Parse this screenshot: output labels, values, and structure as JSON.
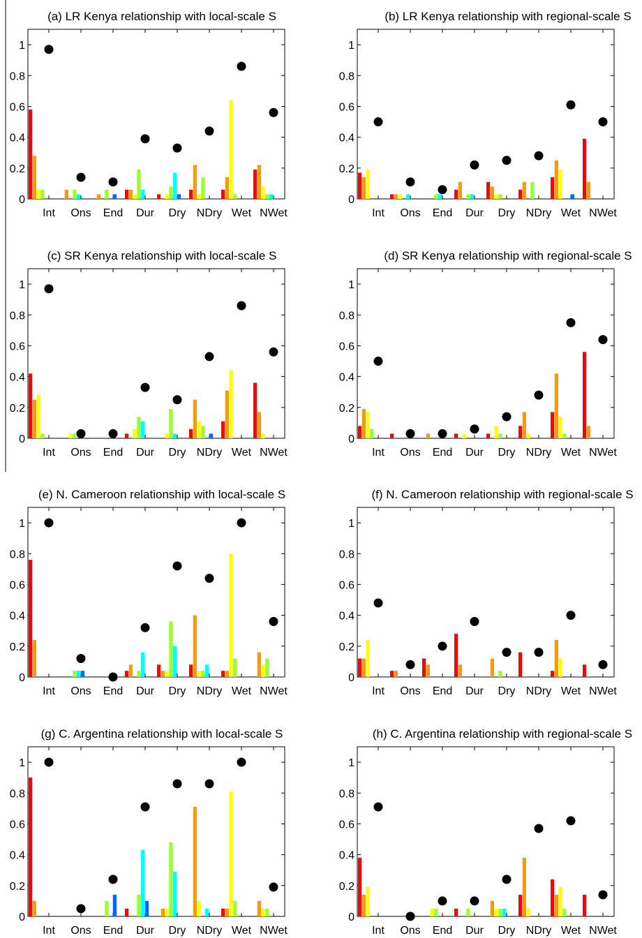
{
  "colors": {
    "series": [
      "#ff0000",
      "#ff9900",
      "#ffff00",
      "#99ff33",
      "#00ffff",
      "#0066ff"
    ],
    "marker": "#000000"
  },
  "chart_data": [
    {
      "type": "bar",
      "title": "(a) LR Kenya relationship with local-scale S",
      "categories": [
        "Int",
        "Ons",
        "End",
        "Dur",
        "Dry",
        "NDry",
        "Wet",
        "NWet"
      ],
      "ylim": [
        0,
        1.1
      ],
      "yticks": [
        "0",
        "0.2",
        "0.4",
        "0.6",
        "0.8",
        "1"
      ],
      "series_values": [
        [
          0.58,
          0,
          0,
          0.06,
          0.03,
          0.06,
          0.06,
          0.19
        ],
        [
          0.28,
          0.06,
          0.03,
          0.06,
          0,
          0.22,
          0.14,
          0.22
        ],
        [
          0.06,
          0,
          0,
          0.03,
          0.03,
          0.03,
          0.64,
          0.08
        ],
        [
          0.06,
          0.06,
          0.06,
          0.19,
          0.08,
          0.14,
          0.03,
          0.03
        ],
        [
          0,
          0.03,
          0,
          0.06,
          0.17,
          0,
          0,
          0.03
        ],
        [
          0,
          0,
          0.03,
          0,
          0.03,
          0,
          0,
          0
        ]
      ],
      "markers": [
        0.97,
        0.14,
        0.11,
        0.39,
        0.33,
        0.44,
        0.86,
        0.56
      ]
    },
    {
      "type": "bar",
      "title": "(b) LR Kenya relationship with regional-scale S",
      "categories": [
        "Int",
        "Ons",
        "End",
        "Dur",
        "Dry",
        "NDry",
        "Wet",
        "NWet"
      ],
      "ylim": [
        0,
        1.1
      ],
      "yticks": [
        "0",
        "0.2",
        "0.4",
        "0.6",
        "0.8",
        "1"
      ],
      "series_values": [
        [
          0.17,
          0.03,
          0,
          0.06,
          0.11,
          0.06,
          0.14,
          0.39
        ],
        [
          0.14,
          0.03,
          0,
          0.11,
          0.08,
          0.11,
          0.25,
          0.11
        ],
        [
          0.19,
          0.03,
          0,
          0,
          0.03,
          0,
          0.19,
          0
        ],
        [
          0,
          0,
          0.03,
          0.03,
          0.03,
          0.11,
          0,
          0
        ],
        [
          0,
          0.03,
          0.03,
          0.03,
          0,
          0,
          0,
          0
        ],
        [
          0,
          0,
          0,
          0,
          0,
          0,
          0.03,
          0
        ]
      ],
      "markers": [
        0.5,
        0.11,
        0.06,
        0.22,
        0.25,
        0.28,
        0.61,
        0.5
      ]
    },
    {
      "type": "bar",
      "title": "(c) SR Kenya relationship with local-scale S",
      "categories": [
        "Int",
        "Ons",
        "End",
        "Dur",
        "Dry",
        "NDry",
        "Wet",
        "NWet"
      ],
      "ylim": [
        0,
        1.1
      ],
      "yticks": [
        "0",
        "0.2",
        "0.4",
        "0.6",
        "0.8",
        "1"
      ],
      "series_values": [
        [
          0.42,
          0,
          0,
          0.03,
          0,
          0.06,
          0.11,
          0.36
        ],
        [
          0.25,
          0,
          0,
          0,
          0,
          0.25,
          0.31,
          0.17
        ],
        [
          0.28,
          0.03,
          0,
          0.06,
          0.03,
          0.11,
          0.44,
          0.03
        ],
        [
          0.03,
          0.03,
          0,
          0.14,
          0.19,
          0.08,
          0,
          0
        ],
        [
          0,
          0,
          0,
          0.11,
          0.03,
          0,
          0,
          0
        ],
        [
          0,
          0,
          0,
          0,
          0,
          0.03,
          0,
          0
        ]
      ],
      "markers": [
        0.97,
        0.03,
        0.03,
        0.33,
        0.25,
        0.53,
        0.86,
        0.56
      ]
    },
    {
      "type": "bar",
      "title": "(d) SR Kenya relationship with regional-scale S",
      "categories": [
        "Int",
        "Ons",
        "End",
        "Dur",
        "Dry",
        "NDry",
        "Wet",
        "NWet"
      ],
      "ylim": [
        0,
        1.1
      ],
      "yticks": [
        "0",
        "0.2",
        "0.4",
        "0.6",
        "0.8",
        "1"
      ],
      "series_values": [
        [
          0.08,
          0.03,
          0,
          0.03,
          0.03,
          0.08,
          0.17,
          0.56
        ],
        [
          0.19,
          0,
          0.03,
          0,
          0,
          0.17,
          0.42,
          0.08
        ],
        [
          0.17,
          0,
          0,
          0.03,
          0.08,
          0.03,
          0.14,
          0
        ],
        [
          0.06,
          0,
          0,
          0,
          0.03,
          0,
          0.03,
          0
        ],
        [
          0,
          0,
          0,
          0,
          0,
          0,
          0,
          0
        ],
        [
          0,
          0,
          0,
          0,
          0,
          0,
          0,
          0
        ]
      ],
      "markers": [
        0.5,
        0.03,
        0.03,
        0.06,
        0.14,
        0.28,
        0.75,
        0.64
      ]
    },
    {
      "type": "bar",
      "title": "(e) N. Cameroon relationship with local-scale S",
      "categories": [
        "Int",
        "Ons",
        "End",
        "Dur",
        "Dry",
        "NDry",
        "Wet",
        "NWet"
      ],
      "ylim": [
        0,
        1.1
      ],
      "yticks": [
        "0",
        "0.2",
        "0.4",
        "0.6",
        "0.8",
        "1"
      ],
      "series_values": [
        [
          0.76,
          0,
          0,
          0.04,
          0.08,
          0.08,
          0.04,
          0
        ],
        [
          0.24,
          0,
          0,
          0.08,
          0.04,
          0.4,
          0.04,
          0.16
        ],
        [
          0,
          0,
          0,
          0,
          0.04,
          0.04,
          0.8,
          0.08
        ],
        [
          0,
          0.04,
          0,
          0.04,
          0.36,
          0.04,
          0.12,
          0.12
        ],
        [
          0,
          0.04,
          0,
          0.16,
          0.2,
          0.08,
          0,
          0
        ],
        [
          0,
          0.04,
          0,
          0,
          0,
          0,
          0,
          0
        ]
      ],
      "markers": [
        1.0,
        0.12,
        0.0,
        0.32,
        0.72,
        0.64,
        1.0,
        0.36
      ]
    },
    {
      "type": "bar",
      "title": "(f) N. Cameroon relationship with regional-scale S",
      "categories": [
        "Int",
        "Ons",
        "End",
        "Dur",
        "Dry",
        "NDry",
        "Wet",
        "NWet"
      ],
      "ylim": [
        0,
        1.1
      ],
      "yticks": [
        "0",
        "0.2",
        "0.4",
        "0.6",
        "0.8",
        "1"
      ],
      "series_values": [
        [
          0.12,
          0.04,
          0.12,
          0.28,
          0,
          0.16,
          0.04,
          0.08
        ],
        [
          0.12,
          0.04,
          0.08,
          0.08,
          0.12,
          0,
          0.24,
          0
        ],
        [
          0.24,
          0,
          0,
          0,
          0,
          0,
          0.12,
          0
        ],
        [
          0,
          0,
          0,
          0,
          0.04,
          0,
          0,
          0
        ],
        [
          0,
          0,
          0,
          0,
          0,
          0,
          0,
          0
        ],
        [
          0,
          0,
          0,
          0,
          0,
          0,
          0,
          0
        ]
      ],
      "markers": [
        0.48,
        0.08,
        0.2,
        0.36,
        0.16,
        0.16,
        0.4,
        0.08
      ]
    },
    {
      "type": "bar",
      "title": "(g) C. Argentina relationship with local-scale S",
      "categories": [
        "Int",
        "Ons",
        "End",
        "Dur",
        "Dry",
        "NDry",
        "Wet",
        "NWet"
      ],
      "ylim": [
        0,
        1.1
      ],
      "yticks": [
        "0",
        "0.2",
        "0.4",
        "0.6",
        "0.8",
        "1"
      ],
      "series_values": [
        [
          0.9,
          0,
          0,
          0.05,
          0,
          0,
          0.05,
          0
        ],
        [
          0.1,
          0,
          0,
          0,
          0.05,
          0.71,
          0.05,
          0.1
        ],
        [
          0,
          0,
          0,
          0,
          0.05,
          0.1,
          0.81,
          0.05
        ],
        [
          0,
          0,
          0.1,
          0.14,
          0.48,
          0,
          0.1,
          0.05
        ],
        [
          0,
          0,
          0,
          0.43,
          0.29,
          0.05,
          0,
          0
        ],
        [
          0,
          0,
          0.14,
          0.1,
          0,
          0,
          0,
          0
        ]
      ],
      "markers": [
        1.0,
        0.05,
        0.24,
        0.71,
        0.86,
        0.86,
        1.0,
        0.19
      ]
    },
    {
      "type": "bar",
      "title": "(h) C. Argentina relationship with regional-scale S",
      "categories": [
        "Int",
        "Ons",
        "End",
        "Dur",
        "Dry",
        "NDry",
        "Wet",
        "NWet"
      ],
      "ylim": [
        0,
        1.1
      ],
      "yticks": [
        "0",
        "0.2",
        "0.4",
        "0.6",
        "0.8",
        "1"
      ],
      "series_values": [
        [
          0.38,
          0,
          0,
          0.05,
          0,
          0.14,
          0.24,
          0.14
        ],
        [
          0.14,
          0,
          0,
          0,
          0.1,
          0.38,
          0.14,
          0
        ],
        [
          0.19,
          0,
          0.05,
          0,
          0.05,
          0.05,
          0.19,
          0
        ],
        [
          0,
          0,
          0.05,
          0.05,
          0.05,
          0,
          0.05,
          0
        ],
        [
          0,
          0,
          0,
          0,
          0.05,
          0,
          0,
          0
        ],
        [
          0,
          0,
          0,
          0,
          0,
          0,
          0,
          0
        ]
      ],
      "markers": [
        0.71,
        0.0,
        0.1,
        0.1,
        0.24,
        0.57,
        0.62,
        0.14
      ]
    }
  ]
}
